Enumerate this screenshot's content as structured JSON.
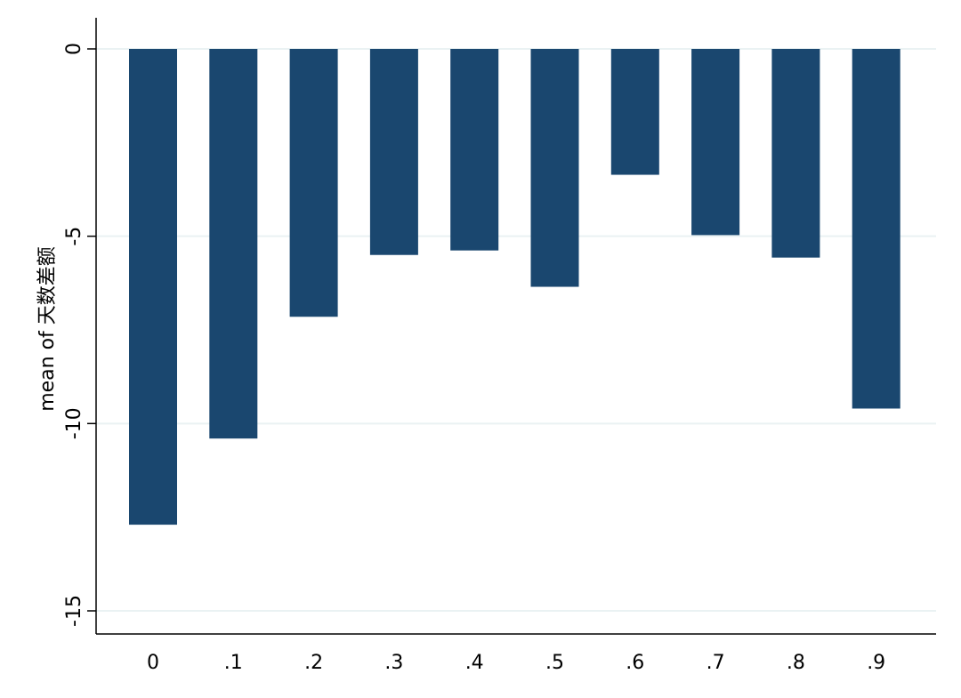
{
  "chart_data": {
    "type": "bar",
    "title": "",
    "xlabel": "",
    "ylabel": "mean of 天数差额",
    "categories": [
      "0",
      ".1",
      ".2",
      ".3",
      ".4",
      ".5",
      ".6",
      ".7",
      ".8",
      ".9"
    ],
    "values": [
      -12.7,
      -10.4,
      -7.15,
      -5.5,
      -5.38,
      -6.35,
      -3.36,
      -4.97,
      -5.57,
      -9.6
    ],
    "ylim": [
      -15.6,
      0.8
    ],
    "yticks": [
      0,
      -5,
      -10,
      -15
    ],
    "ytick_labels": [
      "0",
      "-5",
      "-10",
      "-15"
    ],
    "grid": true,
    "legend": "none",
    "colors": {
      "bar": "#1a476f",
      "grid": "#eaf2f3",
      "axis": "#000000",
      "background": "#ffffff"
    }
  }
}
